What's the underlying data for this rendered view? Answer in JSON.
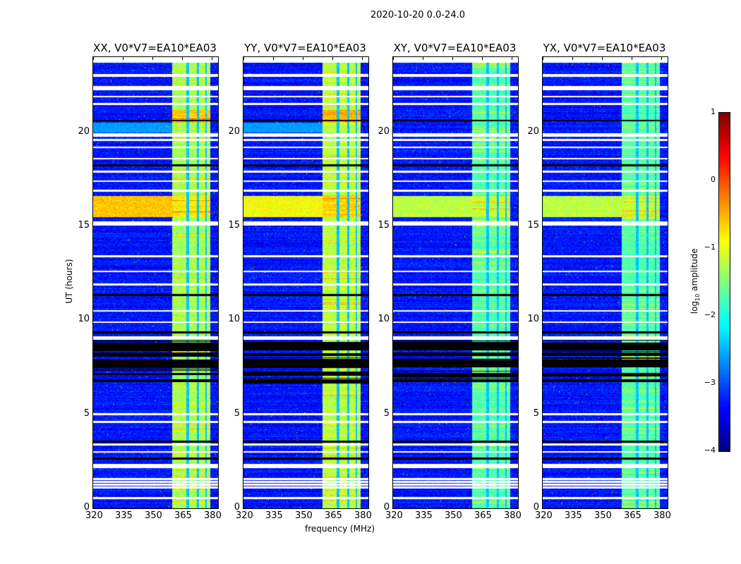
{
  "chart_data": {
    "type": "heatmap",
    "title": "2020-10-20 0.0-24.0",
    "xlabel": "frequency (MHz)",
    "ylabel": "UT (hours)",
    "xlim": [
      320,
      383.2
    ],
    "ylim": [
      0,
      24
    ],
    "xticks": [
      "320",
      "335",
      "350",
      "365",
      "380"
    ],
    "yticks": [
      "0",
      "5",
      "10",
      "15",
      "20"
    ],
    "panels": [
      {
        "title": "XX, V0*V7=EA10*EA03",
        "band_level": -1.3,
        "rfi_level": -0.6,
        "bright_2020": true
      },
      {
        "title": "YY, V0*V7=EA10*EA03",
        "band_level": -1.2,
        "rfi_level": -0.9,
        "bright_2020": true
      },
      {
        "title": "XY, V0*V7=EA10*EA03",
        "band_level": -1.7,
        "rfi_level": -1.2,
        "bright_2020": false
      },
      {
        "title": "YX, V0*V7=EA10*EA03",
        "band_level": -1.7,
        "rfi_level": -1.2,
        "bright_2020": false
      }
    ],
    "background_level": -3.3,
    "band_mhz": [
      360,
      379.3
    ],
    "band_gaps_mhz": [
      [
        367.2,
        368.4
      ],
      [
        372.4,
        373.4
      ],
      [
        376.6,
        377.6
      ]
    ],
    "rfi_hours": [
      15.5,
      16.6
    ],
    "data_end_hour": 23.7,
    "flagged_white_hours": [
      0.55,
      1.1,
      1.25,
      1.4,
      1.55,
      2.2,
      2.3,
      3.0,
      3.4,
      4.6,
      5.0,
      9.0,
      9.1,
      9.9,
      10.5,
      11.9,
      12.6,
      13.4,
      15.1,
      15.2,
      16.9,
      17.4,
      17.9,
      18.6,
      19.2,
      19.6,
      19.8,
      19.9,
      21.5,
      21.9,
      22.3,
      22.4,
      23.0,
      23.05
    ],
    "flagged_black_hours": [
      [
        6.7,
        6.85
      ],
      [
        7.1,
        7.2
      ],
      [
        7.5,
        7.9
      ],
      [
        8.1,
        8.25
      ],
      [
        8.4,
        8.8
      ],
      [
        9.3,
        9.4
      ],
      [
        2.6,
        2.7
      ],
      [
        3.5,
        3.6
      ],
      [
        11.3,
        11.4
      ],
      [
        18.2,
        18.3
      ],
      [
        20.6,
        20.65
      ]
    ],
    "colorbar": {
      "label": "log10 amplitude",
      "label_main": "log",
      "label_sub": "10",
      "label_rest": " amplitude",
      "range": [
        -4,
        1
      ],
      "ticks": [
        "1",
        "0",
        "−1",
        "−2",
        "−3",
        "−4"
      ],
      "colormap": "jet"
    }
  }
}
